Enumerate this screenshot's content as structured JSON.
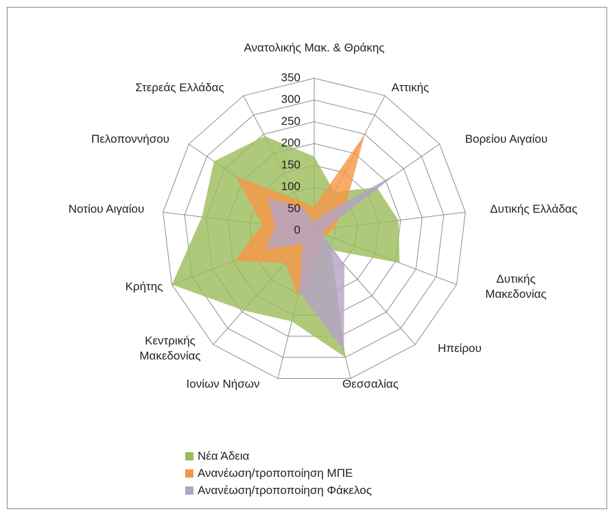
{
  "chart_data": {
    "type": "radar",
    "categories": [
      "Ανατολικής Μακ. & Θράκης",
      "Αττικής",
      "Βορείου Αιγαίου",
      "Δυτικής Ελλάδας",
      "Δυτικής Μακεδονίας",
      "Ηπείρου",
      "Θεσσαλίας",
      "Ιονίων Νήσων",
      "Κεντρικής Μακεδονίας",
      "Κρήτης",
      "Νοτίου Αιγαίου",
      "Πελοποννήσου",
      "Στερεάς Ελλάδας"
    ],
    "series": [
      {
        "name": "Νέα Άδεια",
        "color": "#9bbb59",
        "values": [
          170,
          100,
          175,
          195,
          210,
          60,
          300,
          215,
          245,
          350,
          260,
          280,
          245
        ]
      },
      {
        "name": "Ανανέωση/τροποποίηση ΜΠΕ",
        "color": "#f79646",
        "values": [
          55,
          250,
          85,
          45,
          30,
          15,
          50,
          155,
          100,
          195,
          120,
          220,
          80
        ]
      },
      {
        "name": "Ανανέωση/τροποποίηση Φάκελος",
        "color": "#b3a2c7",
        "values": [
          20,
          40,
          235,
          25,
          20,
          105,
          285,
          145,
          40,
          120,
          90,
          130,
          60
        ]
      }
    ],
    "ylim": [
      0,
      350
    ],
    "yticks": [
      0,
      50,
      100,
      150,
      200,
      250,
      300,
      350
    ],
    "grid": true,
    "legend": "bottom"
  }
}
